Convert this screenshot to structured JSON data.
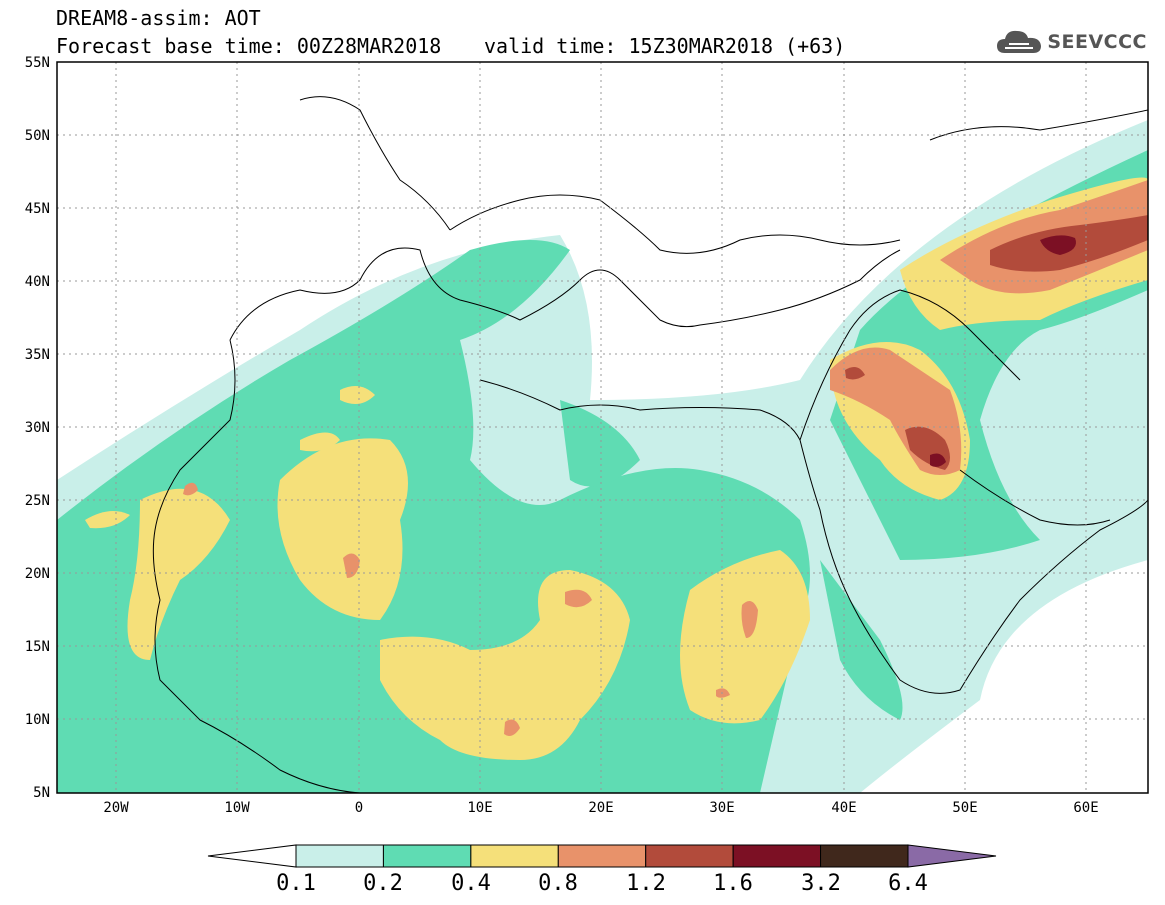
{
  "title": {
    "line1": "DREAM8-assim: AOT",
    "line2": "Forecast base time: 00Z28MAR2018",
    "line3": "valid time: 15Z30MAR2018 (+63)"
  },
  "logo": {
    "icon": "cloud-icon",
    "text": "SEEVCCC"
  },
  "map": {
    "lon_range": [
      -25,
      65
    ],
    "lat_range": [
      5,
      55
    ],
    "lat_labels": [
      "55N",
      "50N",
      "45N",
      "40N",
      "35N",
      "30N",
      "25N",
      "20N",
      "15N",
      "10N",
      "5N"
    ],
    "lon_labels": [
      "20W",
      "10W",
      "0",
      "10E",
      "20E",
      "30E",
      "40E",
      "50E",
      "60E"
    ]
  },
  "colorbar": {
    "levels": [
      "0.1",
      "0.2",
      "0.4",
      "0.8",
      "1.2",
      "1.6",
      "3.2",
      "6.4"
    ],
    "colors": [
      "#c9efe9",
      "#5fdcb3",
      "#f5e07a",
      "#e8926a",
      "#b24b3b",
      "#7c1024",
      "#40281c",
      "#8a6aa6"
    ]
  },
  "chart_data": {
    "type": "heatmap",
    "title": "DREAM8-assim: AOT",
    "xlabel": "",
    "ylabel": "",
    "x_range": [
      -25,
      65
    ],
    "y_range": [
      5,
      55
    ],
    "levels": [
      0.1,
      0.2,
      0.4,
      0.8,
      1.2,
      1.6,
      3.2,
      6.4
    ]
  }
}
